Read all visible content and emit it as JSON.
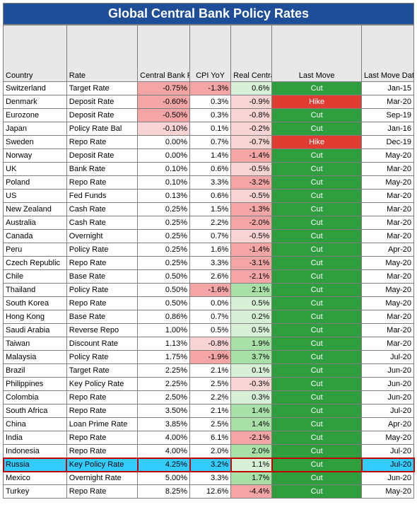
{
  "title": "Global Central Bank Policy Rates",
  "palette": {
    "neg_strong": "#f4a6a6",
    "neg_weak": "#f9d4d4",
    "pos_strong": "#a8e0a8",
    "pos_weak": "#d8f0d8",
    "cut": "#2e9e3f",
    "hike": "#e03c31",
    "header_bg": "#e8e8e8",
    "title_bg": "#1f4e99",
    "highlight_row": "#33ccff"
  },
  "columns": [
    {
      "key": "country",
      "label": "Country"
    },
    {
      "key": "rate",
      "label": "Rate"
    },
    {
      "key": "today",
      "label": "Central Bank Rate (Today)"
    },
    {
      "key": "cpi",
      "label": "CPI YoY"
    },
    {
      "key": "real",
      "label": "Real Central Bank Rate"
    },
    {
      "key": "move",
      "label": "Last Move"
    },
    {
      "key": "date",
      "label": "Last Move Date"
    }
  ],
  "rows": [
    {
      "country": "Switzerland",
      "rate": "Target Rate",
      "today": "-0.75%",
      "today_c": "neg_strong",
      "cpi": "-1.3%",
      "cpi_c": "neg_strong",
      "real": "0.6%",
      "real_c": "pos_weak",
      "move": "Cut",
      "date": "Jan-15"
    },
    {
      "country": "Denmark",
      "rate": "Deposit Rate",
      "today": "-0.60%",
      "today_c": "neg_strong",
      "cpi": "0.3%",
      "cpi_c": "",
      "real": "-0.9%",
      "real_c": "neg_weak",
      "move": "Hike",
      "date": "Mar-20"
    },
    {
      "country": "Eurozone",
      "rate": "Deposit Rate",
      "today": "-0.50%",
      "today_c": "neg_strong",
      "cpi": "0.3%",
      "cpi_c": "",
      "real": "-0.8%",
      "real_c": "neg_weak",
      "move": "Cut",
      "date": "Sep-19"
    },
    {
      "country": "Japan",
      "rate": "Policy Rate Bal",
      "today": "-0.10%",
      "today_c": "neg_weak",
      "cpi": "0.1%",
      "cpi_c": "",
      "real": "-0.2%",
      "real_c": "neg_weak",
      "move": "Cut",
      "date": "Jan-16"
    },
    {
      "country": "Sweden",
      "rate": "Repo Rate",
      "today": "0.00%",
      "today_c": "",
      "cpi": "0.7%",
      "cpi_c": "",
      "real": "-0.7%",
      "real_c": "neg_weak",
      "move": "Hike",
      "date": "Dec-19"
    },
    {
      "country": "Norway",
      "rate": "Deposit Rate",
      "today": "0.00%",
      "today_c": "",
      "cpi": "1.4%",
      "cpi_c": "",
      "real": "-1.4%",
      "real_c": "neg_strong",
      "move": "Cut",
      "date": "May-20"
    },
    {
      "country": "UK",
      "rate": "Bank Rate",
      "today": "0.10%",
      "today_c": "",
      "cpi": "0.6%",
      "cpi_c": "",
      "real": "-0.5%",
      "real_c": "neg_weak",
      "move": "Cut",
      "date": "Mar-20"
    },
    {
      "country": "Poland",
      "rate": "Repo Rate",
      "today": "0.10%",
      "today_c": "",
      "cpi": "3.3%",
      "cpi_c": "",
      "real": "-3.2%",
      "real_c": "neg_strong",
      "move": "Cut",
      "date": "May-20"
    },
    {
      "country": "US",
      "rate": "Fed Funds",
      "today": "0.13%",
      "today_c": "",
      "cpi": "0.6%",
      "cpi_c": "",
      "real": "-0.5%",
      "real_c": "neg_weak",
      "move": "Cut",
      "date": "Mar-20"
    },
    {
      "country": "New Zealand",
      "rate": "Cash Rate",
      "today": "0.25%",
      "today_c": "",
      "cpi": "1.5%",
      "cpi_c": "",
      "real": "-1.3%",
      "real_c": "neg_strong",
      "move": "Cut",
      "date": "Mar-20"
    },
    {
      "country": "Australia",
      "rate": "Cash Rate",
      "today": "0.25%",
      "today_c": "",
      "cpi": "2.2%",
      "cpi_c": "",
      "real": "-2.0%",
      "real_c": "neg_strong",
      "move": "Cut",
      "date": "Mar-20"
    },
    {
      "country": "Canada",
      "rate": "Overnight",
      "today": "0.25%",
      "today_c": "",
      "cpi": "0.7%",
      "cpi_c": "",
      "real": "-0.5%",
      "real_c": "neg_weak",
      "move": "Cut",
      "date": "Mar-20"
    },
    {
      "country": "Peru",
      "rate": "Policy Rate",
      "today": "0.25%",
      "today_c": "",
      "cpi": "1.6%",
      "cpi_c": "",
      "real": "-1.4%",
      "real_c": "neg_strong",
      "move": "Cut",
      "date": "Apr-20"
    },
    {
      "country": "Czech Republic",
      "rate": "Repo Rate",
      "today": "0.25%",
      "today_c": "",
      "cpi": "3.3%",
      "cpi_c": "",
      "real": "-3.1%",
      "real_c": "neg_strong",
      "move": "Cut",
      "date": "May-20"
    },
    {
      "country": "Chile",
      "rate": "Base Rate",
      "today": "0.50%",
      "today_c": "",
      "cpi": "2.6%",
      "cpi_c": "",
      "real": "-2.1%",
      "real_c": "neg_strong",
      "move": "Cut",
      "date": "Mar-20"
    },
    {
      "country": "Thailand",
      "rate": "Policy Rate",
      "today": "0.50%",
      "today_c": "",
      "cpi": "-1.6%",
      "cpi_c": "neg_strong",
      "real": "2.1%",
      "real_c": "pos_strong",
      "move": "Cut",
      "date": "May-20"
    },
    {
      "country": "South Korea",
      "rate": "Repo Rate",
      "today": "0.50%",
      "today_c": "",
      "cpi": "0.0%",
      "cpi_c": "",
      "real": "0.5%",
      "real_c": "pos_weak",
      "move": "Cut",
      "date": "May-20"
    },
    {
      "country": "Hong Kong",
      "rate": "Base Rate",
      "today": "0.86%",
      "today_c": "",
      "cpi": "0.7%",
      "cpi_c": "",
      "real": "0.2%",
      "real_c": "pos_weak",
      "move": "Cut",
      "date": "Mar-20"
    },
    {
      "country": "Saudi Arabia",
      "rate": "Reverse Repo",
      "today": "1.00%",
      "today_c": "",
      "cpi": "0.5%",
      "cpi_c": "",
      "real": "0.5%",
      "real_c": "pos_weak",
      "move": "Cut",
      "date": "Mar-20"
    },
    {
      "country": "Taiwan",
      "rate": "Discount Rate",
      "today": "1.13%",
      "today_c": "",
      "cpi": "-0.8%",
      "cpi_c": "neg_weak",
      "real": "1.9%",
      "real_c": "pos_strong",
      "move": "Cut",
      "date": "Mar-20"
    },
    {
      "country": "Malaysia",
      "rate": "Policy Rate",
      "today": "1.75%",
      "today_c": "",
      "cpi": "-1.9%",
      "cpi_c": "neg_strong",
      "real": "3.7%",
      "real_c": "pos_strong",
      "move": "Cut",
      "date": "Jul-20"
    },
    {
      "country": "Brazil",
      "rate": "Target Rate",
      "today": "2.25%",
      "today_c": "",
      "cpi": "2.1%",
      "cpi_c": "",
      "real": "0.1%",
      "real_c": "pos_weak",
      "move": "Cut",
      "date": "Jun-20"
    },
    {
      "country": "Philippines",
      "rate": "Key Policy Rate",
      "today": "2.25%",
      "today_c": "",
      "cpi": "2.5%",
      "cpi_c": "",
      "real": "-0.3%",
      "real_c": "neg_weak",
      "move": "Cut",
      "date": "Jun-20"
    },
    {
      "country": "Colombia",
      "rate": "Repo Rate",
      "today": "2.50%",
      "today_c": "",
      "cpi": "2.2%",
      "cpi_c": "",
      "real": "0.3%",
      "real_c": "pos_weak",
      "move": "Cut",
      "date": "Jun-20"
    },
    {
      "country": "South Africa",
      "rate": "Repo Rate",
      "today": "3.50%",
      "today_c": "",
      "cpi": "2.1%",
      "cpi_c": "",
      "real": "1.4%",
      "real_c": "pos_strong",
      "move": "Cut",
      "date": "Jul-20"
    },
    {
      "country": "China",
      "rate": "Loan Prime Rate",
      "today": "3.85%",
      "today_c": "",
      "cpi": "2.5%",
      "cpi_c": "",
      "real": "1.4%",
      "real_c": "pos_strong",
      "move": "Cut",
      "date": "Apr-20"
    },
    {
      "country": "India",
      "rate": "Repo Rate",
      "today": "4.00%",
      "today_c": "",
      "cpi": "6.1%",
      "cpi_c": "",
      "real": "-2.1%",
      "real_c": "neg_strong",
      "move": "Cut",
      "date": "May-20"
    },
    {
      "country": "Indonesia",
      "rate": "Repo Rate",
      "today": "4.00%",
      "today_c": "",
      "cpi": "2.0%",
      "cpi_c": "",
      "real": "2.0%",
      "real_c": "pos_strong",
      "move": "Cut",
      "date": "Jul-20"
    },
    {
      "country": "Russia",
      "rate": "Key Policy Rate",
      "today": "4.25%",
      "today_c": "",
      "cpi": "3.2%",
      "cpi_c": "",
      "real": "1.1%",
      "real_c": "pos_weak",
      "move": "Cut",
      "date": "Jul-20",
      "highlight": true
    },
    {
      "country": "Mexico",
      "rate": "Overnight Rate",
      "today": "5.00%",
      "today_c": "",
      "cpi": "3.3%",
      "cpi_c": "",
      "real": "1.7%",
      "real_c": "pos_strong",
      "move": "Cut",
      "date": "Jun-20"
    },
    {
      "country": "Turkey",
      "rate": "Repo Rate",
      "today": "8.25%",
      "today_c": "",
      "cpi": "12.6%",
      "cpi_c": "",
      "real": "-4.4%",
      "real_c": "neg_strong",
      "move": "Cut",
      "date": "May-20"
    }
  ]
}
